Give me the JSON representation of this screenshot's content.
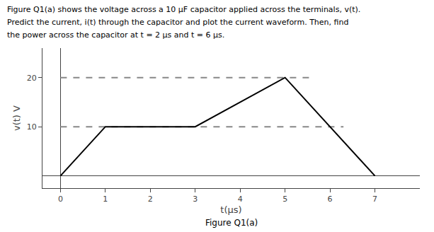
{
  "chart_data": {
    "type": "line",
    "title": "Figure Q1(a)",
    "annotations": [
      "Figure Q1(a) shows the voltage across a 10 μF capacitor applied across the terminals, v(t).",
      "Predict the current, i(t) through the capacitor and plot the current waveform. Then, find",
      "the power across the capacitor at t = 2 μs and t = 6 μs."
    ],
    "xlabel": "t(μs)",
    "ylabel": "v(t) V",
    "series": [
      {
        "x": [
          0.0,
          6.3
        ],
        "values": [
          10,
          10
        ],
        "color": "#888888",
        "line_style": "dashed"
      },
      {
        "x": [
          0.0,
          5.55
        ],
        "values": [
          20,
          20
        ],
        "color": "#888888",
        "line_style": "dashed"
      },
      {
        "x": [
          0,
          1,
          3,
          5,
          7
        ],
        "values": [
          0,
          10,
          10,
          20,
          0
        ],
        "color": "#000000",
        "line_style": "solid"
      }
    ],
    "xlim": [
      -0.4,
      8.0
    ],
    "ylim": [
      -2.5,
      26
    ],
    "xticks": [
      0,
      1,
      2,
      3,
      4,
      5,
      6,
      7
    ],
    "yticks": [
      10,
      20
    ],
    "grid": false
  }
}
